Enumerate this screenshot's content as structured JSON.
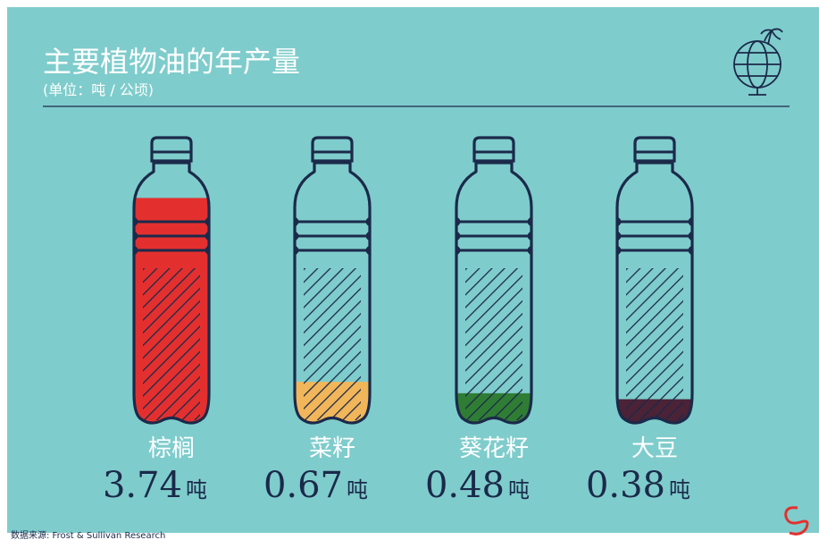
{
  "chart_data": {
    "type": "bottle",
    "title": "主要植物油的年产量",
    "subtitle": "(单位：吨 / 公顷)",
    "categories": [
      "棕榈",
      "菜籽",
      "葵花籽",
      "大豆"
    ],
    "values": [
      3.74,
      0.67,
      0.48,
      0.38
    ],
    "unit": "吨",
    "colors": [
      "#e3302f",
      "#f2b65a",
      "#2f7d34",
      "#4b2236"
    ],
    "source": "数据来源: Frost & Sullivan Research"
  }
}
